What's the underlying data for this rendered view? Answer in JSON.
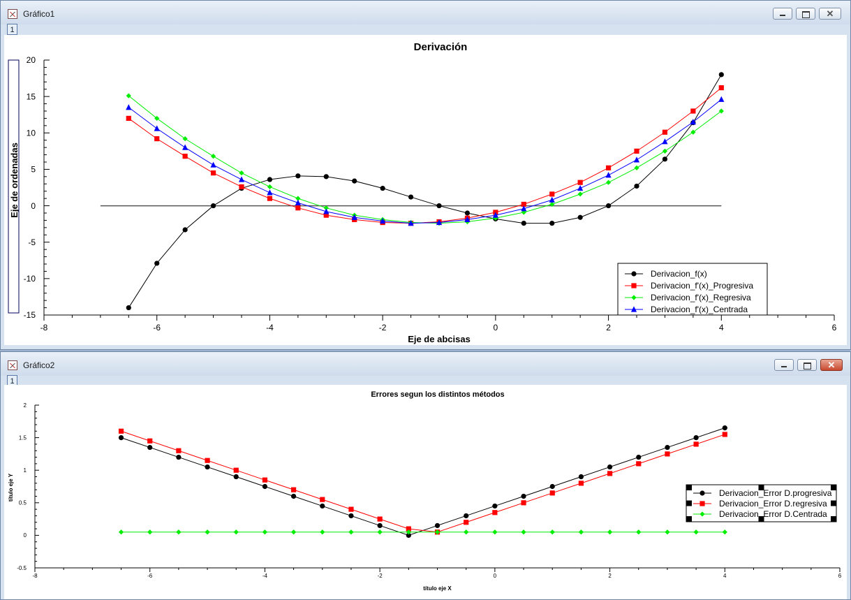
{
  "windows": [
    {
      "title": "Gráfico1",
      "tab": "1",
      "chart_data": {
        "type": "line",
        "title": "Derivación",
        "xlabel": "Eje de abcisas",
        "ylabel": "Eje de ordenadas",
        "xlim": [
          -8,
          6
        ],
        "ylim": [
          -15,
          20
        ],
        "xticks": [
          -8,
          -6,
          -4,
          -2,
          0,
          2,
          4,
          6
        ],
        "yticks": [
          -15,
          -10,
          -5,
          0,
          5,
          10,
          15,
          20
        ],
        "legend_position": "bottom-right",
        "baseline": {
          "x": [
            -7,
            4
          ],
          "y": 0
        },
        "series": [
          {
            "name": "Derivacion_f(x)",
            "color": "#000000",
            "marker": "circle",
            "x": [
              -6.5,
              -6,
              -5.5,
              -5,
              -4.5,
              -4,
              -3.5,
              -3,
              -2.5,
              -2,
              -1.5,
              -1,
              -0.5,
              0,
              0.5,
              1,
              1.5,
              2,
              2.5,
              3,
              3.5,
              4
            ],
            "y": [
              -14,
              -7.9,
              -3.3,
              0,
              2.4,
              3.6,
              4.1,
              4.0,
              3.4,
              2.4,
              1.2,
              0,
              -1.0,
              -1.8,
              -2.4,
              -2.4,
              -1.6,
              0,
              2.7,
              6.4,
              11.4,
              18
            ]
          },
          {
            "name": "Derivacion_f'(x)_Progresiva",
            "color": "#ff0000",
            "marker": "square",
            "x": [
              -6.5,
              -6,
              -5.5,
              -5,
              -4.5,
              -4,
              -3.5,
              -3,
              -2.5,
              -2,
              -1.5,
              -1,
              -0.5,
              0,
              0.5,
              1,
              1.5,
              2,
              2.5,
              3,
              3.5,
              4
            ],
            "y": [
              12.0,
              9.2,
              6.8,
              4.5,
              2.6,
              1.0,
              -0.3,
              -1.3,
              -1.9,
              -2.3,
              -2.4,
              -2.2,
              -1.7,
              -0.9,
              0.2,
              1.6,
              3.2,
              5.2,
              7.5,
              10.1,
              13.0,
              16.2
            ]
          },
          {
            "name": "Derivacion_f'(x)_Regresiva",
            "color": "#00ee00",
            "marker": "diamond",
            "x": [
              -6.5,
              -6,
              -5.5,
              -5,
              -4.5,
              -4,
              -3.5,
              -3,
              -2.5,
              -2,
              -1.5,
              -1,
              -0.5,
              0,
              0.5,
              1,
              1.5,
              2,
              2.5,
              3,
              3.5,
              4
            ],
            "y": [
              15.1,
              12.0,
              9.2,
              6.8,
              4.5,
              2.6,
              1.0,
              -0.3,
              -1.3,
              -1.9,
              -2.3,
              -2.4,
              -2.2,
              -1.7,
              -0.9,
              0.2,
              1.6,
              3.2,
              5.2,
              7.5,
              10.1,
              13.0
            ]
          },
          {
            "name": "Derivacion_f'(x)_Centrada",
            "color": "#0000ff",
            "marker": "triangle",
            "x": [
              -6.5,
              -6,
              -5.5,
              -5,
              -4.5,
              -4,
              -3.5,
              -3,
              -2.5,
              -2,
              -1.5,
              -1,
              -0.5,
              0,
              0.5,
              1,
              1.5,
              2,
              2.5,
              3,
              3.5,
              4
            ],
            "y": [
              13.5,
              10.6,
              8.0,
              5.6,
              3.6,
              1.8,
              0.4,
              -0.8,
              -1.6,
              -2.1,
              -2.4,
              -2.3,
              -1.9,
              -1.3,
              -0.4,
              0.8,
              2.4,
              4.2,
              6.3,
              8.8,
              11.5,
              14.6
            ]
          }
        ]
      }
    },
    {
      "title": "Gráfico2",
      "tab": "1",
      "chart_data": {
        "type": "line",
        "title": "Errores segun los distintos métodos",
        "xlabel": "título eje X",
        "ylabel": "título eje Y",
        "xlim": [
          -8,
          6
        ],
        "ylim": [
          -0.5,
          2
        ],
        "xticks": [
          -8,
          -6,
          -4,
          -2,
          0,
          2,
          4,
          6
        ],
        "yticks": [
          -0.5,
          0,
          0.5,
          1,
          1.5,
          2
        ],
        "legend_position": "right",
        "series": [
          {
            "name": "Derivacion_Error D.progresiva",
            "color": "#000000",
            "marker": "circle",
            "x": [
              -6.5,
              -6,
              -5.5,
              -5,
              -4.5,
              -4,
              -3.5,
              -3,
              -2.5,
              -2,
              -1.5,
              -1,
              -0.5,
              0,
              0.5,
              1,
              1.5,
              2,
              2.5,
              3,
              3.5,
              4
            ],
            "y": [
              1.5,
              1.35,
              1.2,
              1.05,
              0.9,
              0.75,
              0.6,
              0.45,
              0.3,
              0.15,
              0.0,
              0.15,
              0.3,
              0.45,
              0.6,
              0.75,
              0.9,
              1.05,
              1.2,
              1.35,
              1.5,
              1.65
            ]
          },
          {
            "name": "Derivacion_Error D.regresiva",
            "color": "#ff0000",
            "marker": "square",
            "x": [
              -6.5,
              -6,
              -5.5,
              -5,
              -4.5,
              -4,
              -3.5,
              -3,
              -2.5,
              -2,
              -1.5,
              -1,
              -0.5,
              0,
              0.5,
              1,
              1.5,
              2,
              2.5,
              3,
              3.5,
              4
            ],
            "y": [
              1.6,
              1.45,
              1.3,
              1.15,
              1.0,
              0.85,
              0.7,
              0.55,
              0.4,
              0.25,
              0.1,
              0.05,
              0.2,
              0.35,
              0.5,
              0.65,
              0.8,
              0.95,
              1.1,
              1.25,
              1.4,
              1.55
            ]
          },
          {
            "name": "Derivacion_Error D.Centrada",
            "color": "#00ee00",
            "marker": "diamond",
            "x": [
              -6.5,
              -6,
              -5.5,
              -5,
              -4.5,
              -4,
              -3.5,
              -3,
              -2.5,
              -2,
              -1.5,
              -1,
              -0.5,
              0,
              0.5,
              1,
              1.5,
              2,
              2.5,
              3,
              3.5,
              4
            ],
            "y": [
              0.05,
              0.05,
              0.05,
              0.05,
              0.05,
              0.05,
              0.05,
              0.05,
              0.05,
              0.05,
              0.05,
              0.05,
              0.05,
              0.05,
              0.05,
              0.05,
              0.05,
              0.05,
              0.05,
              0.05,
              0.05,
              0.05
            ]
          }
        ]
      }
    }
  ]
}
